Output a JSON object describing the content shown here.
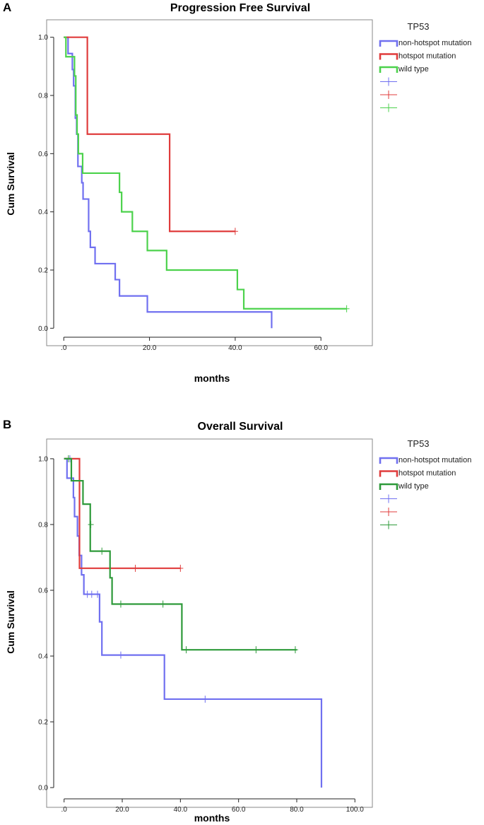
{
  "colors": {
    "non_hotspot": "#7070f0",
    "hotspot": "#e03c3c",
    "wild_type_pfs": "#4cd24c",
    "wild_type_os": "#2e9a3a"
  },
  "chart_data": [
    {
      "panel": "A",
      "type": "line",
      "subtype": "kaplan-meier",
      "title": "Progression Free Survival",
      "xlabel": "months",
      "ylabel": "Cum Survival",
      "xlim": [
        -4,
        72
      ],
      "ylim": [
        -0.06,
        1.06
      ],
      "xticks": [
        0,
        20,
        40,
        60
      ],
      "xtick_labels": [
        ".0",
        "20.0",
        "40.0",
        "60.0"
      ],
      "yticks": [
        0,
        0.2,
        0.4,
        0.6,
        0.8,
        1.0
      ],
      "ytick_labels": [
        "0.0",
        "0.2",
        "0.4",
        "0.6",
        "0.8",
        "1.0"
      ],
      "legend_title": "TP53",
      "legend_position": "right",
      "legend_entries": [
        "non-hotspot mutation",
        "hotspot mutation",
        "wild type",
        "",
        "",
        ""
      ],
      "series": [
        {
          "name": "non-hotspot mutation",
          "color_key": "non_hotspot",
          "steps": [
            [
              0,
              1.0
            ],
            [
              1,
              0.944
            ],
            [
              2,
              0.889
            ],
            [
              2.3,
              0.833
            ],
            [
              2.7,
              0.722
            ],
            [
              3,
              0.667
            ],
            [
              3.3,
              0.556
            ],
            [
              4.2,
              0.5
            ],
            [
              4.5,
              0.444
            ],
            [
              5.8,
              0.333
            ],
            [
              6.2,
              0.278
            ],
            [
              7.3,
              0.222
            ],
            [
              12,
              0.167
            ],
            [
              13,
              0.111
            ],
            [
              19.5,
              0.056
            ],
            [
              48.5,
              0.0
            ]
          ],
          "end_x": 48.5,
          "censored": []
        },
        {
          "name": "hotspot mutation",
          "color_key": "hotspot",
          "steps": [
            [
              0,
              1.0
            ],
            [
              5.5,
              0.667
            ],
            [
              24.7,
              0.333
            ]
          ],
          "end_x": 40,
          "censored": [
            [
              40,
              0.333
            ]
          ]
        },
        {
          "name": "wild type",
          "color_key": "wild_type_pfs",
          "steps": [
            [
              0,
              1.0
            ],
            [
              0.5,
              0.933
            ],
            [
              2.5,
              0.867
            ],
            [
              2.8,
              0.733
            ],
            [
              3.1,
              0.667
            ],
            [
              3.4,
              0.6
            ],
            [
              4.4,
              0.533
            ],
            [
              13,
              0.467
            ],
            [
              13.5,
              0.4
            ],
            [
              16,
              0.333
            ],
            [
              19.5,
              0.267
            ],
            [
              24,
              0.2
            ],
            [
              40.5,
              0.133
            ],
            [
              42,
              0.067
            ]
          ],
          "end_x": 66,
          "censored": [
            [
              66,
              0.067
            ]
          ]
        }
      ]
    },
    {
      "panel": "B",
      "type": "line",
      "subtype": "kaplan-meier",
      "title": "Overall Survival",
      "xlabel": "months",
      "ylabel": "Cum Survival",
      "xlim": [
        -6,
        106
      ],
      "ylim": [
        -0.06,
        1.06
      ],
      "xticks": [
        0,
        20,
        40,
        60,
        80,
        100
      ],
      "xtick_labels": [
        ".0",
        "20.0",
        "40.0",
        "60.0",
        "80.0",
        "100.0"
      ],
      "yticks": [
        0,
        0.2,
        0.4,
        0.6,
        0.8,
        1.0
      ],
      "ytick_labels": [
        "0.0",
        "0.2",
        "0.4",
        "0.6",
        "0.8",
        "1.0"
      ],
      "legend_title": "TP53",
      "legend_position": "right",
      "legend_entries": [
        "non-hotspot mutation",
        "hotspot mutation",
        "wild type",
        "",
        "",
        ""
      ],
      "series": [
        {
          "name": "non-hotspot mutation",
          "color_key": "non_hotspot",
          "steps": [
            [
              0,
              1.0
            ],
            [
              1,
              0.941
            ],
            [
              3.2,
              0.882
            ],
            [
              3.6,
              0.824
            ],
            [
              4.6,
              0.765
            ],
            [
              5.2,
              0.706
            ],
            [
              6,
              0.647
            ],
            [
              6.8,
              0.588
            ],
            [
              12.2,
              0.504
            ],
            [
              13,
              0.403
            ],
            [
              34.5,
              0.269
            ],
            [
              88.5,
              0.0
            ]
          ],
          "end_x": 88.5,
          "censored": [
            [
              2,
              1.0
            ],
            [
              8,
              0.588
            ],
            [
              9.5,
              0.588
            ],
            [
              11.5,
              0.588
            ],
            [
              19.5,
              0.403
            ],
            [
              48.5,
              0.269
            ]
          ]
        },
        {
          "name": "hotspot mutation",
          "color_key": "hotspot",
          "steps": [
            [
              0,
              1.0
            ],
            [
              5.3,
              0.667
            ]
          ],
          "end_x": 40,
          "censored": [
            [
              24.5,
              0.667
            ],
            [
              40,
              0.667
            ]
          ]
        },
        {
          "name": "wild type",
          "color_key": "wild_type_os",
          "steps": [
            [
              0,
              1.0
            ],
            [
              2.5,
              0.933
            ],
            [
              6.5,
              0.862
            ],
            [
              9,
              0.719
            ],
            [
              15.8,
              0.638
            ],
            [
              16.5,
              0.558
            ],
            [
              40.5,
              0.419
            ]
          ],
          "end_x": 80,
          "censored": [
            [
              1.5,
              1.0
            ],
            [
              9.2,
              0.8
            ],
            [
              13,
              0.719
            ],
            [
              19.5,
              0.558
            ],
            [
              34,
              0.558
            ],
            [
              42,
              0.419
            ],
            [
              66,
              0.419
            ],
            [
              79.5,
              0.419
            ]
          ]
        }
      ]
    }
  ]
}
